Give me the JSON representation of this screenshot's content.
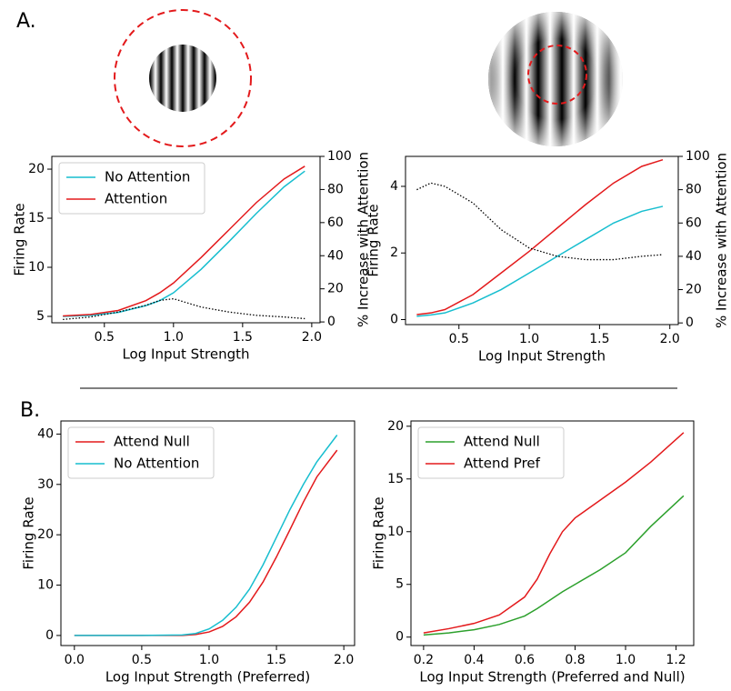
{
  "panel_labels": [
    "A.",
    "B."
  ],
  "chart_data": [
    {
      "type": "line",
      "ylabel": "Firing Rate",
      "xlabel": "Log Input Strength",
      "y2label": "% Increase with Attention",
      "x": [
        0.2,
        0.4,
        0.6,
        0.8,
        0.9,
        1.0,
        1.2,
        1.4,
        1.6,
        1.8,
        1.95
      ],
      "series": [
        {
          "name": "No Attention",
          "color": "#17becf",
          "values": [
            5.0,
            5.1,
            5.4,
            6.1,
            6.6,
            7.4,
            9.8,
            12.6,
            15.5,
            18.2,
            19.8
          ]
        },
        {
          "name": "Attention",
          "color": "#e31a1c",
          "values": [
            5.05,
            5.2,
            5.6,
            6.6,
            7.4,
            8.4,
            11.0,
            13.8,
            16.6,
            19.0,
            20.3
          ]
        },
        {
          "color": "#000000",
          "linestyle": "dotted",
          "axis": "y2",
          "values": [
            1.5,
            3,
            6,
            10,
            13,
            14,
            9,
            6,
            4,
            3,
            2
          ]
        }
      ],
      "xlim": [
        0.12,
        2.06
      ],
      "xticks": [
        0.5,
        {
          "value": 1,
          "label": "1.0"
        },
        1.5,
        {
          "value": 2,
          "label": "2.0"
        }
      ],
      "ylim": [
        4.35,
        21.3
      ],
      "yticks": [
        5,
        10,
        15,
        20
      ],
      "y2lim": [
        -0.5,
        100
      ],
      "y2ticks": [
        0,
        20,
        40,
        60,
        80,
        100
      ],
      "legend": "upper left"
    },
    {
      "type": "line",
      "ylabel": "Firing Rate",
      "xlabel": "Log Input Strength",
      "y2label": "% Increase with Attention",
      "x": [
        0.2,
        0.3,
        0.4,
        0.6,
        0.8,
        1.0,
        1.2,
        1.4,
        1.6,
        1.8,
        1.95
      ],
      "series": [
        {
          "color": "#17becf",
          "values": [
            0.1,
            0.14,
            0.2,
            0.5,
            0.9,
            1.4,
            1.9,
            2.4,
            2.9,
            3.25,
            3.4
          ]
        },
        {
          "color": "#e31a1c",
          "values": [
            0.15,
            0.2,
            0.3,
            0.75,
            1.4,
            2.05,
            2.75,
            3.45,
            4.1,
            4.6,
            4.8
          ]
        },
        {
          "color": "#000000",
          "linestyle": "dotted",
          "axis": "y2",
          "values": [
            80,
            84,
            82,
            72,
            56,
            45,
            40,
            38,
            38,
            40,
            41
          ]
        }
      ],
      "xlim": [
        0.12,
        2.06
      ],
      "xticks": [
        0.5,
        {
          "value": 1,
          "label": "1.0"
        },
        1.5,
        {
          "value": 2,
          "label": "2.0"
        }
      ],
      "ylim": [
        -0.15,
        4.9
      ],
      "yticks": [
        0,
        2,
        4
      ],
      "y2lim": [
        -1,
        100
      ],
      "y2ticks": [
        0,
        20,
        40,
        60,
        80,
        100
      ]
    },
    {
      "type": "line",
      "ylabel": "Firing Rate",
      "xlabel": "Log Input Strength (Preferred)",
      "x": [
        0.0,
        0.5,
        0.8,
        0.9,
        1.0,
        1.1,
        1.2,
        1.3,
        1.4,
        1.5,
        1.6,
        1.7,
        1.8,
        1.95
      ],
      "series": [
        {
          "name": "Attend Null",
          "color": "#e31a1c",
          "values": [
            0,
            0,
            0,
            0.2,
            0.7,
            1.8,
            3.7,
            6.6,
            10.6,
            15.6,
            21,
            26.5,
            31.5,
            36.8
          ]
        },
        {
          "name": "No Attention",
          "color": "#17becf",
          "values": [
            0,
            0,
            0.1,
            0.4,
            1.3,
            3,
            5.6,
            9.2,
            14,
            19.5,
            25,
            30,
            34.5,
            39.8
          ]
        }
      ],
      "xlim": [
        -0.1,
        2.08
      ],
      "xticks": [
        {
          "value": 0,
          "label": "0.0"
        },
        0.5,
        {
          "value": 1,
          "label": "1.0"
        },
        1.5,
        {
          "value": 2,
          "label": "2.0"
        }
      ],
      "ylim": [
        -2,
        42.6
      ],
      "yticks": [
        0,
        10,
        20,
        30,
        40
      ],
      "legend": "upper left"
    },
    {
      "type": "line",
      "ylabel": "Firing Rate",
      "xlabel": "Log Input Strength (Preferred and Null)",
      "x": [
        0.2,
        0.3,
        0.4,
        0.5,
        0.6,
        0.65,
        0.7,
        0.75,
        0.8,
        0.9,
        1.0,
        1.1,
        1.23
      ],
      "series": [
        {
          "name": "Attend Null",
          "color": "#2ca02c",
          "values": [
            0.2,
            0.4,
            0.7,
            1.2,
            2.0,
            2.7,
            3.5,
            4.3,
            5.0,
            6.4,
            8.0,
            10.5,
            13.4
          ]
        },
        {
          "name": "Attend Pref",
          "color": "#e31a1c",
          "values": [
            0.4,
            0.8,
            1.3,
            2.1,
            3.8,
            5.5,
            7.9,
            10,
            11.3,
            13.0,
            14.7,
            16.6,
            19.4
          ]
        }
      ],
      "xlim": [
        0.15,
        1.27
      ],
      "xticks": [
        0.2,
        0.4,
        0.6,
        0.8,
        {
          "value": 1,
          "label": "1.0"
        },
        1.2
      ],
      "ylim": [
        -0.8,
        20.5
      ],
      "yticks": [
        0,
        5,
        10,
        15,
        20
      ],
      "legend": "upper left"
    }
  ]
}
